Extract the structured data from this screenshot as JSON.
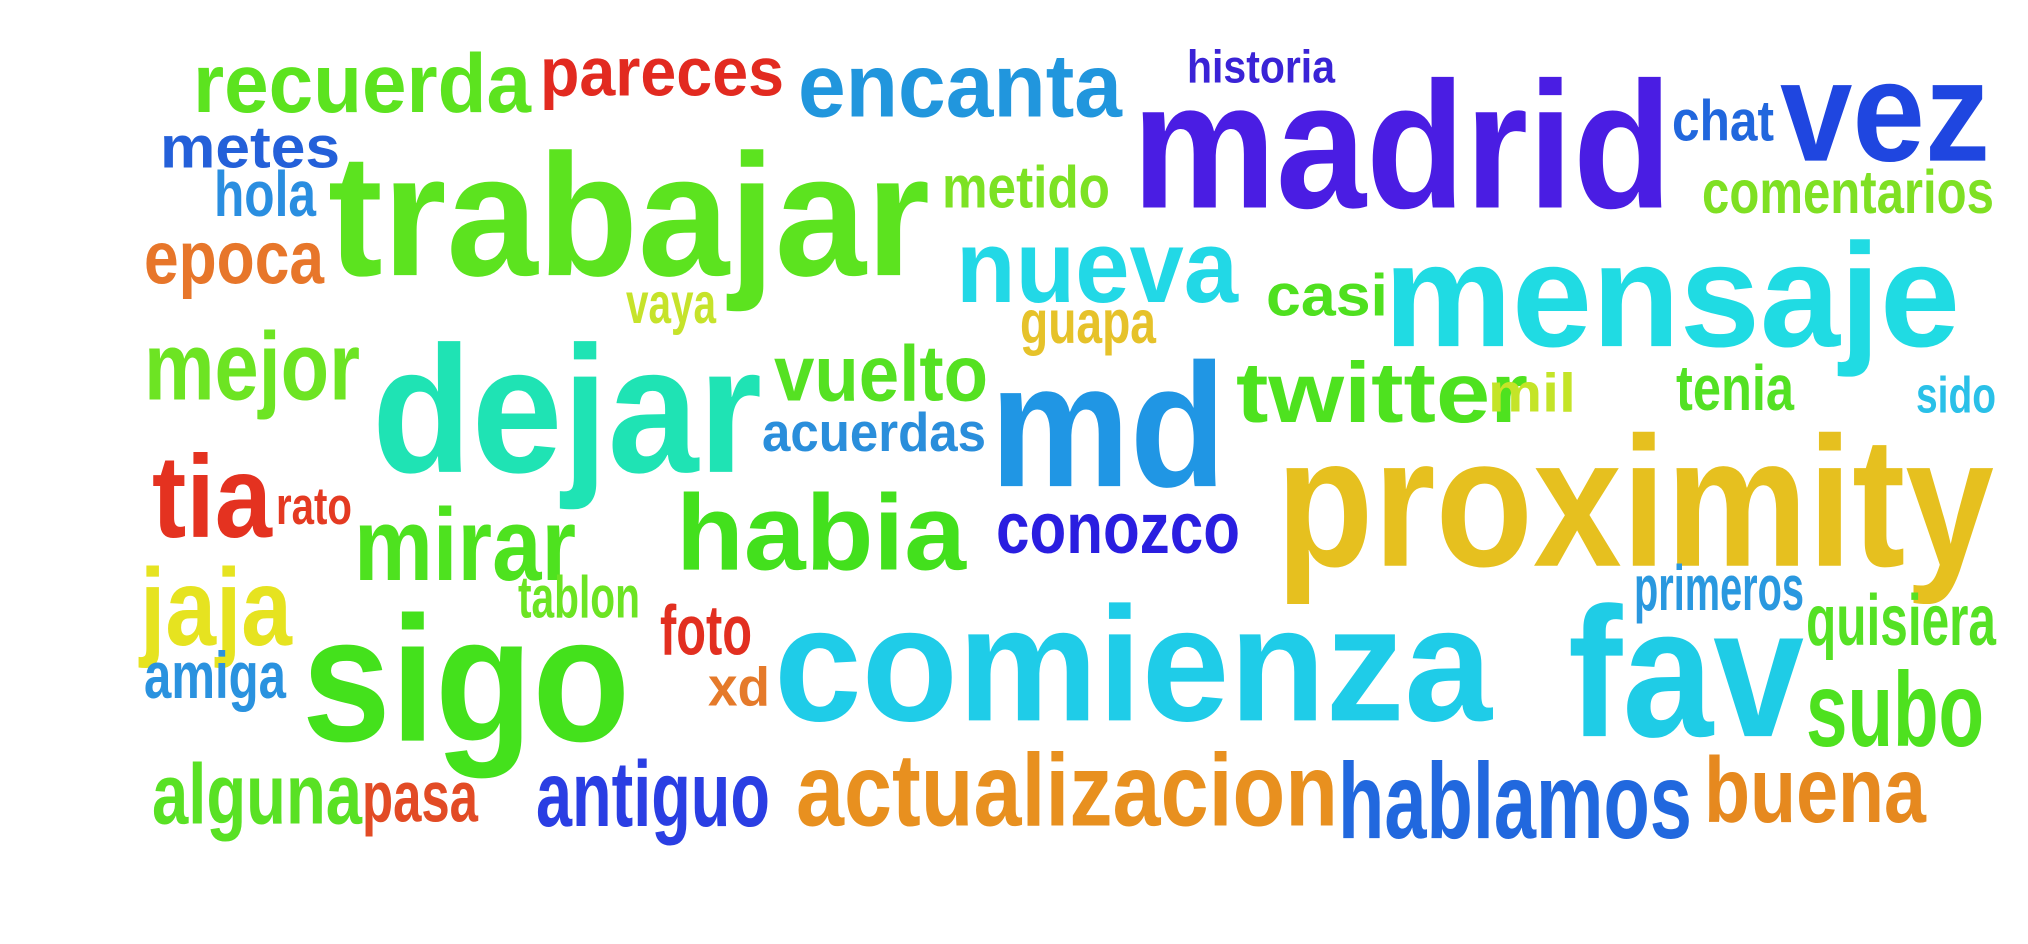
{
  "words": [
    {
      "text": "recuerda",
      "color": "#5ce31f"
    },
    {
      "text": "pareces",
      "color": "#e22a20"
    },
    {
      "text": "encanta",
      "color": "#2196dd"
    },
    {
      "text": "historia",
      "color": "#3a23d6"
    },
    {
      "text": "madrid",
      "color": "#4a1de3"
    },
    {
      "text": "chat",
      "color": "#2167dd"
    },
    {
      "text": "vez",
      "color": "#1f46e0"
    },
    {
      "text": "metes",
      "color": "#2460d9"
    },
    {
      "text": "hola",
      "color": "#2a8ee0"
    },
    {
      "text": "trabajar",
      "color": "#5ce31f"
    },
    {
      "text": "metido",
      "color": "#7de224"
    },
    {
      "text": "comentarios",
      "color": "#7fe023"
    },
    {
      "text": "epoca",
      "color": "#e7762a"
    },
    {
      "text": "nueva",
      "color": "#22d8e6"
    },
    {
      "text": "casi",
      "color": "#4fe01f"
    },
    {
      "text": "mensaje",
      "color": "#20dbe3"
    },
    {
      "text": "vaya",
      "color": "#c6e32a"
    },
    {
      "text": "guapa",
      "color": "#e6c22a"
    },
    {
      "text": "mejor",
      "color": "#6de423"
    },
    {
      "text": "dejar",
      "color": "#1fe3b4"
    },
    {
      "text": "vuelto",
      "color": "#55e122"
    },
    {
      "text": "acuerdas",
      "color": "#2a8edb"
    },
    {
      "text": "md",
      "color": "#2096e4"
    },
    {
      "text": "twitter",
      "color": "#4ee21f"
    },
    {
      "text": "mil",
      "color": "#c4e428"
    },
    {
      "text": "tenia",
      "color": "#53e123"
    },
    {
      "text": "sido",
      "color": "#2ac0e8"
    },
    {
      "text": "proximity",
      "color": "#e6c01f"
    },
    {
      "text": "tia",
      "color": "#e43220"
    },
    {
      "text": "rato",
      "color": "#e43a22"
    },
    {
      "text": "mirar",
      "color": "#4ee21f"
    },
    {
      "text": "habia",
      "color": "#43e01d"
    },
    {
      "text": "conozco",
      "color": "#2a1ee0"
    },
    {
      "text": "jaja",
      "color": "#e6e320"
    },
    {
      "text": "tablon",
      "color": "#6ce423"
    },
    {
      "text": "foto",
      "color": "#e22f20"
    },
    {
      "text": "primeros",
      "color": "#2a98df"
    },
    {
      "text": "quisiera",
      "color": "#55e124"
    },
    {
      "text": "sigo",
      "color": "#44e11c"
    },
    {
      "text": "comienza",
      "color": "#1fcce8"
    },
    {
      "text": "fav",
      "color": "#1fcce6"
    },
    {
      "text": "amiga",
      "color": "#2a92df"
    },
    {
      "text": "xd",
      "color": "#e57a2a"
    },
    {
      "text": "subo",
      "color": "#4ee11f"
    },
    {
      "text": "alguna",
      "color": "#59e124"
    },
    {
      "text": "pasa",
      "color": "#e24b25"
    },
    {
      "text": "antiguo",
      "color": "#2a3ee3"
    },
    {
      "text": "actualizacion",
      "color": "#e8901f"
    },
    {
      "text": "hablamos",
      "color": "#2168de"
    },
    {
      "text": "buena",
      "color": "#e6891f"
    }
  ]
}
